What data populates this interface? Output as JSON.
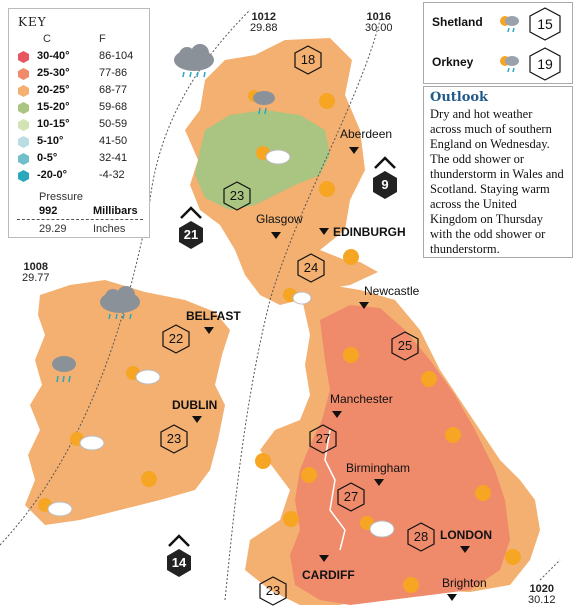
{
  "key": {
    "title": "KEY",
    "col_c": "C",
    "col_f": "F",
    "bands": [
      {
        "c": "30-40°",
        "f": "86-104",
        "color": "#e8545f"
      },
      {
        "c": "25-30°",
        "f": "77-86",
        "color": "#ef8a6b"
      },
      {
        "c": "20-25°",
        "f": "68-77",
        "color": "#f3b070"
      },
      {
        "c": "15-20°",
        "f": "59-68",
        "color": "#a9c581"
      },
      {
        "c": "10-15°",
        "f": "50-59",
        "color": "#d2e4b4"
      },
      {
        "c": "5-10°",
        "f": "41-50",
        "color": "#b9dde3"
      },
      {
        "c": "0-5°",
        "f": "32-41",
        "color": "#6fbfcd"
      },
      {
        "c": "-20-0°",
        "f": "-4-32",
        "color": "#2aa6bd"
      }
    ],
    "pressure_label": "Pressure",
    "sample_mb": "992",
    "millibars_label": "Millibars",
    "sample_inches": "29.29",
    "inches_label": "Inches"
  },
  "islands": [
    {
      "name": "Shetland",
      "temp": "15"
    },
    {
      "name": "Orkney",
      "temp": "19"
    }
  ],
  "outlook": {
    "heading": "Outlook",
    "text": "Dry and hot weather across much of southern England on Wednesday. The odd shower or thunderstorm in Wales and Scotland. Staying warm across the United Kingdom on Thursday with the odd shower or thunderstorm."
  },
  "isobars": [
    {
      "mb": "1012",
      "inches": "29.88"
    },
    {
      "mb": "1016",
      "inches": "30.00"
    },
    {
      "mb": "1008",
      "inches": "29.77"
    },
    {
      "mb": "1020",
      "inches": "30.12"
    }
  ],
  "cities": [
    {
      "name": "Aberdeen",
      "bold": false
    },
    {
      "name": "Glasgow",
      "bold": false
    },
    {
      "name": "EDINBURGH",
      "bold": true
    },
    {
      "name": "Newcastle",
      "bold": false
    },
    {
      "name": "BELFAST",
      "bold": true
    },
    {
      "name": "DUBLIN",
      "bold": true
    },
    {
      "name": "Manchester",
      "bold": false
    },
    {
      "name": "Birmingham",
      "bold": false
    },
    {
      "name": "LONDON",
      "bold": true
    },
    {
      "name": "CARDIFF",
      "bold": true
    },
    {
      "name": "Brighton",
      "bold": false
    }
  ],
  "temperatures": [
    "18",
    "23",
    "24",
    "22",
    "23",
    "25",
    "27",
    "27",
    "28",
    "23"
  ],
  "pressure_centres": [
    "9",
    "21",
    "14"
  ],
  "colors": {
    "warm_land": "#f3b070",
    "hot_land": "#ef8a6b",
    "mild_land": "#a9c581",
    "sea": "#ffffff",
    "outlook_heading": "#1f5a8a"
  },
  "icons": [
    "sun-icon",
    "cloud-icon",
    "rain-cloud-icon",
    "sun-cloud-icon",
    "sun-shower-icon"
  ]
}
